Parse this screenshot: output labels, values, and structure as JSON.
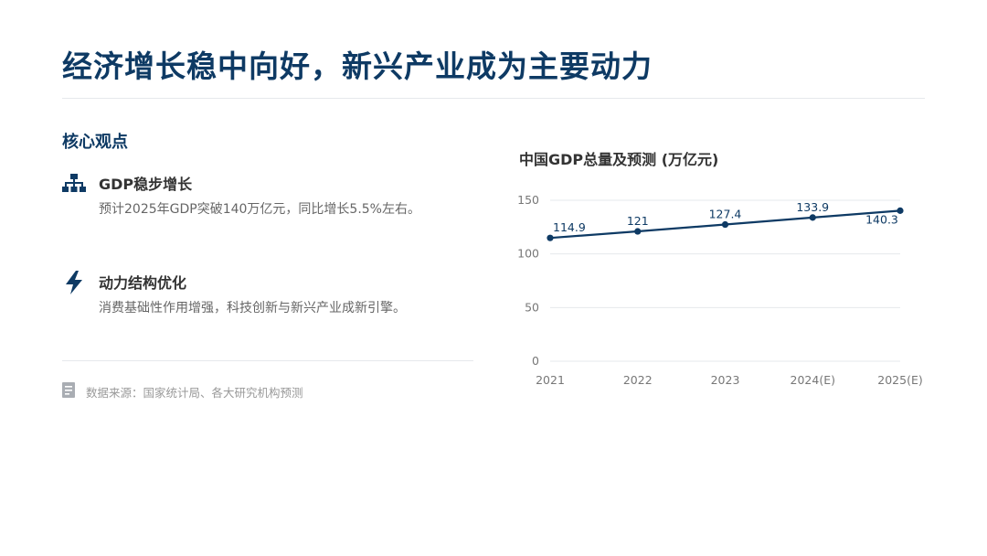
{
  "header": {
    "title": "经济增长稳中向好，新兴产业成为主要动力"
  },
  "insights": {
    "heading": "核心观点",
    "points": [
      {
        "icon": "hierarchy-icon",
        "title": "GDP稳步增长",
        "description": "预计2025年GDP突破140万亿元，同比增长5.5%左右。"
      },
      {
        "icon": "lightning-icon",
        "title": "动力结构优化",
        "description": "消费基础性作用增强，科技创新与新兴产业成新引擎。"
      }
    ],
    "source": "数据来源：国家统计局、各大研究机构预测"
  },
  "colors": {
    "accent": "#0e3a64",
    "grid": "#e6e8ec",
    "muted": "#999999"
  },
  "chart_data": {
    "type": "line",
    "title": "中国GDP总量及预测 (万亿元)",
    "categories": [
      "2021",
      "2022",
      "2023",
      "2024(E)",
      "2025(E)"
    ],
    "series": [
      {
        "values": [
          114.9,
          121,
          127.4,
          133.9,
          140.3
        ]
      }
    ],
    "data_labels": [
      "114.9",
      "121",
      "127.4",
      "133.9",
      "140.3"
    ],
    "ylim": [
      0,
      150
    ],
    "yticks": [
      0,
      50,
      100,
      150
    ],
    "grid": true,
    "legend": "none"
  }
}
